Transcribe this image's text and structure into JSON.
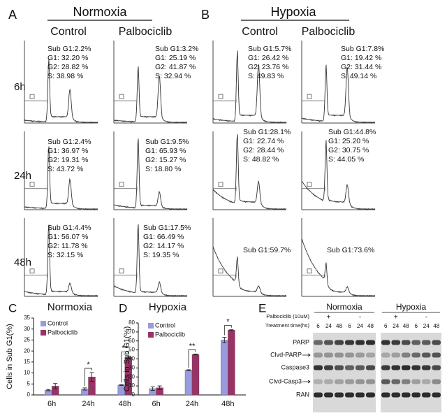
{
  "rows": [
    "6h",
    "24h",
    "48h"
  ],
  "panels": [
    {
      "label": "A",
      "title": "Normoxia",
      "columns": [
        "Control",
        "Palbociclib"
      ],
      "stats": [
        [
          [
            "Sub G1:2.2%",
            "G1: 32.20 %",
            "G2: 28.82 %",
            "S: 38.98 %"
          ],
          [
            "Sub G1:3.2%",
            "G1: 25.19 %",
            "G2: 41.87 %",
            "S: 32.94 %"
          ]
        ],
        [
          [
            "Sub G1:2.4%",
            "G1: 36.97 %",
            "G2: 19.31 %",
            "S: 43.72 %"
          ],
          [
            "Sub G1:9.5%",
            "G1: 65.93 %",
            "G2: 15.27 %",
            "S: 18.80 %"
          ]
        ],
        [
          [
            "Sub G1:4.4%",
            "G1: 56.07 %",
            "G2: 11.78 %",
            "S: 32.15 %"
          ],
          [
            "Sub G1:17.5%",
            "G1: 66.49 %",
            "G2: 14.17 %",
            "S: 19.35 %"
          ]
        ]
      ]
    },
    {
      "label": "B",
      "title": "Hypoxia",
      "columns": [
        "Control",
        "Palbociclib"
      ],
      "stats": [
        [
          [
            "Sub G1:5.7%",
            "G1: 26.42 %",
            "G2: 23.76 %",
            "S: 49.83 %"
          ],
          [
            "Sub G1:7.8%",
            "G1: 19.42 %",
            "G2: 31.44 %",
            "S: 49.14 %"
          ]
        ],
        [
          [
            "Sub G1:28.1%",
            "G1: 22.74 %",
            "G2: 28.44 %",
            "S: 48.82 %"
          ],
          [
            "Sub G1:44.8%",
            "G1: 25.20 %",
            "G2: 30.75 %",
            "S: 44.05 %"
          ]
        ],
        [
          [
            "Sub G1:59.7%"
          ],
          [
            "Sub G1:73.6%"
          ]
        ]
      ]
    }
  ],
  "chart_data": [
    {
      "type": "bar",
      "label": "C",
      "title": "Normoxia",
      "y_label": "Cells in Sub G1(%)",
      "categories": [
        "6h",
        "24h",
        "48h"
      ],
      "series": [
        {
          "name": "Control",
          "color": "#9a9ade",
          "values": [
            2.2,
            2.7,
            4.5
          ],
          "errors": [
            0.3,
            0.5,
            0.2
          ]
        },
        {
          "name": "Palbociclib",
          "color": "#993366",
          "values": [
            4.0,
            8.2,
            17.2
          ],
          "errors": [
            1.2,
            2.0,
            0.5
          ]
        }
      ],
      "significance": [
        null,
        "*",
        "**"
      ],
      "ylim": [
        0,
        35
      ],
      "yticks": [
        0,
        5,
        10,
        15,
        20,
        25,
        30,
        35
      ]
    },
    {
      "type": "bar",
      "label": "D",
      "title": "Hypoxia",
      "y_label": "Cells in Sub G1(%)",
      "categories": [
        "6h",
        "24h",
        "48h"
      ],
      "series": [
        {
          "name": "Control",
          "color": "#9a9ade",
          "values": [
            7,
            27.5,
            61
          ],
          "errors": [
            2,
            0.5,
            3
          ]
        },
        {
          "name": "Palbociclib",
          "color": "#993366",
          "values": [
            8,
            45,
            72
          ],
          "errors": [
            2,
            0.5,
            0.5
          ]
        }
      ],
      "significance": [
        null,
        "**",
        "*"
      ],
      "ylim": [
        0,
        80
      ],
      "yticks": [
        0,
        10,
        20,
        30,
        40,
        50,
        60,
        70,
        80
      ]
    }
  ],
  "blot": {
    "label": "E",
    "treatment_label": "Palbociclib (10uM)",
    "time_label": "Treatment time(hs)",
    "groups": [
      {
        "name": "Normoxia",
        "conditions": [
          {
            "sign": "+",
            "times": [
              "6",
              "24",
              "48"
            ]
          },
          {
            "sign": "-",
            "times": [
              "6",
              "24",
              "48"
            ]
          }
        ]
      },
      {
        "name": "Hypoxia",
        "conditions": [
          {
            "sign": "+",
            "times": [
              "6",
              "24",
              "48"
            ]
          },
          {
            "sign": "-",
            "times": [
              "6",
              "24",
              "48"
            ]
          }
        ]
      }
    ],
    "rows": [
      "PARP",
      "Clvd-PARP",
      "Caspase3",
      "Clvd-Casp3",
      "RAN"
    ]
  }
}
